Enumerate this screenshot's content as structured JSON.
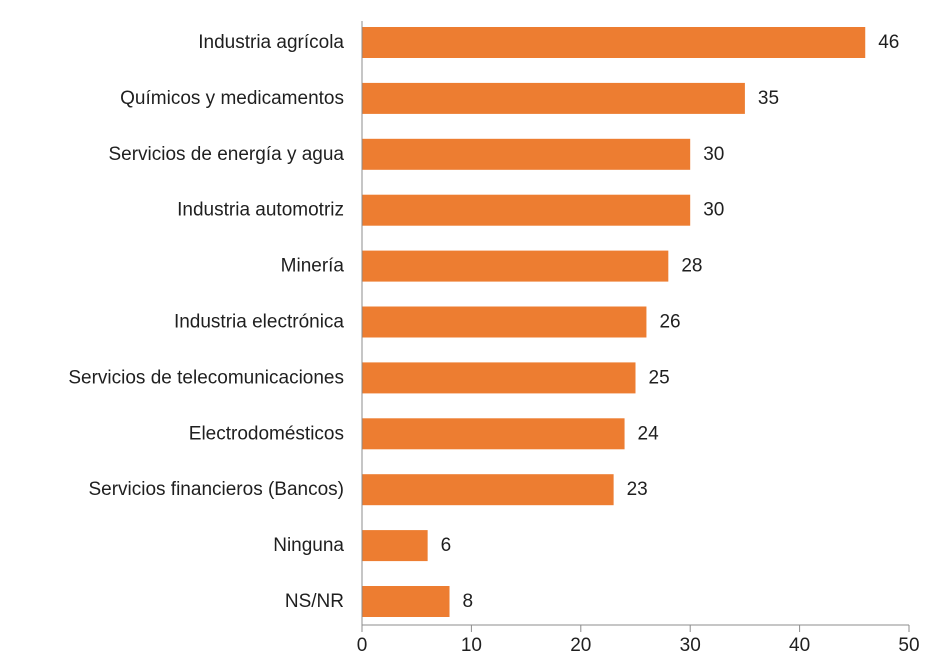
{
  "chart_data": {
    "type": "bar",
    "orientation": "horizontal",
    "categories": [
      "Industria agrícola",
      "Químicos y medicamentos",
      "Servicios de energía y agua",
      "Industria automotriz",
      "Minería",
      "Industria electrónica",
      "Servicios de telecomunicaciones",
      "Electrodomésticos",
      "Servicios financieros (Bancos)",
      "Ninguna",
      "NS/NR"
    ],
    "values": [
      46,
      35,
      30,
      30,
      28,
      26,
      25,
      24,
      23,
      6,
      8
    ],
    "xlim": [
      0,
      50
    ],
    "xticks": [
      0,
      10,
      20,
      30,
      40,
      50
    ],
    "title": "",
    "xlabel": "",
    "ylabel": "",
    "grid": false,
    "data_labels": true,
    "colors": {
      "bar": "#ED7D31",
      "axis": "#8C8C8C",
      "text": "#1F1F1F"
    }
  }
}
